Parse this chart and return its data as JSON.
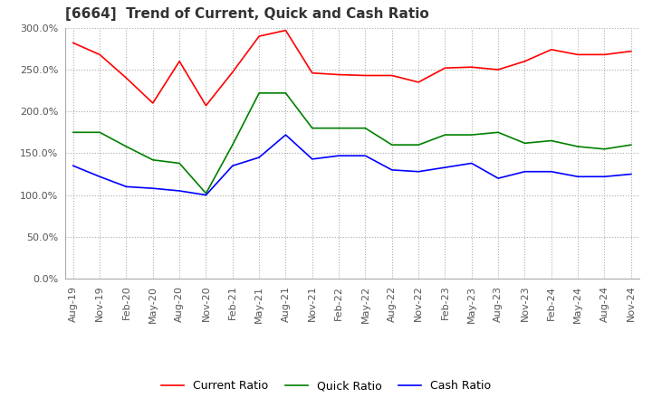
{
  "title": "[6664]  Trend of Current, Quick and Cash Ratio",
  "x_labels": [
    "Aug-19",
    "Nov-19",
    "Feb-20",
    "May-20",
    "Aug-20",
    "Nov-20",
    "Feb-21",
    "May-21",
    "Aug-21",
    "Nov-21",
    "Feb-22",
    "May-22",
    "Aug-22",
    "Nov-22",
    "Feb-23",
    "May-23",
    "Aug-23",
    "Nov-23",
    "Feb-24",
    "May-24",
    "Aug-24",
    "Nov-24"
  ],
  "current_ratio": [
    2.82,
    2.68,
    2.4,
    2.1,
    2.6,
    2.07,
    2.47,
    2.9,
    2.97,
    2.46,
    2.44,
    2.43,
    2.43,
    2.35,
    2.52,
    2.53,
    2.5,
    2.6,
    2.74,
    2.68,
    2.68,
    2.72
  ],
  "quick_ratio": [
    1.75,
    1.75,
    1.58,
    1.42,
    1.38,
    1.02,
    1.6,
    2.22,
    2.22,
    1.8,
    1.8,
    1.8,
    1.6,
    1.6,
    1.72,
    1.72,
    1.75,
    1.62,
    1.65,
    1.58,
    1.55,
    1.6
  ],
  "cash_ratio": [
    1.35,
    1.22,
    1.1,
    1.08,
    1.05,
    1.0,
    1.35,
    1.45,
    1.72,
    1.43,
    1.47,
    1.47,
    1.3,
    1.28,
    1.33,
    1.38,
    1.2,
    1.28,
    1.28,
    1.22,
    1.22,
    1.25
  ],
  "current_color": "#FF0000",
  "quick_color": "#008000",
  "cash_color": "#0000FF",
  "ylim": [
    0.0,
    3.0
  ],
  "yticks": [
    0.0,
    0.5,
    1.0,
    1.5,
    2.0,
    2.5,
    3.0
  ],
  "background_color": "#ffffff",
  "grid_color": "#aaaaaa",
  "title_fontsize": 11,
  "legend_fontsize": 9,
  "tick_fontsize": 8
}
